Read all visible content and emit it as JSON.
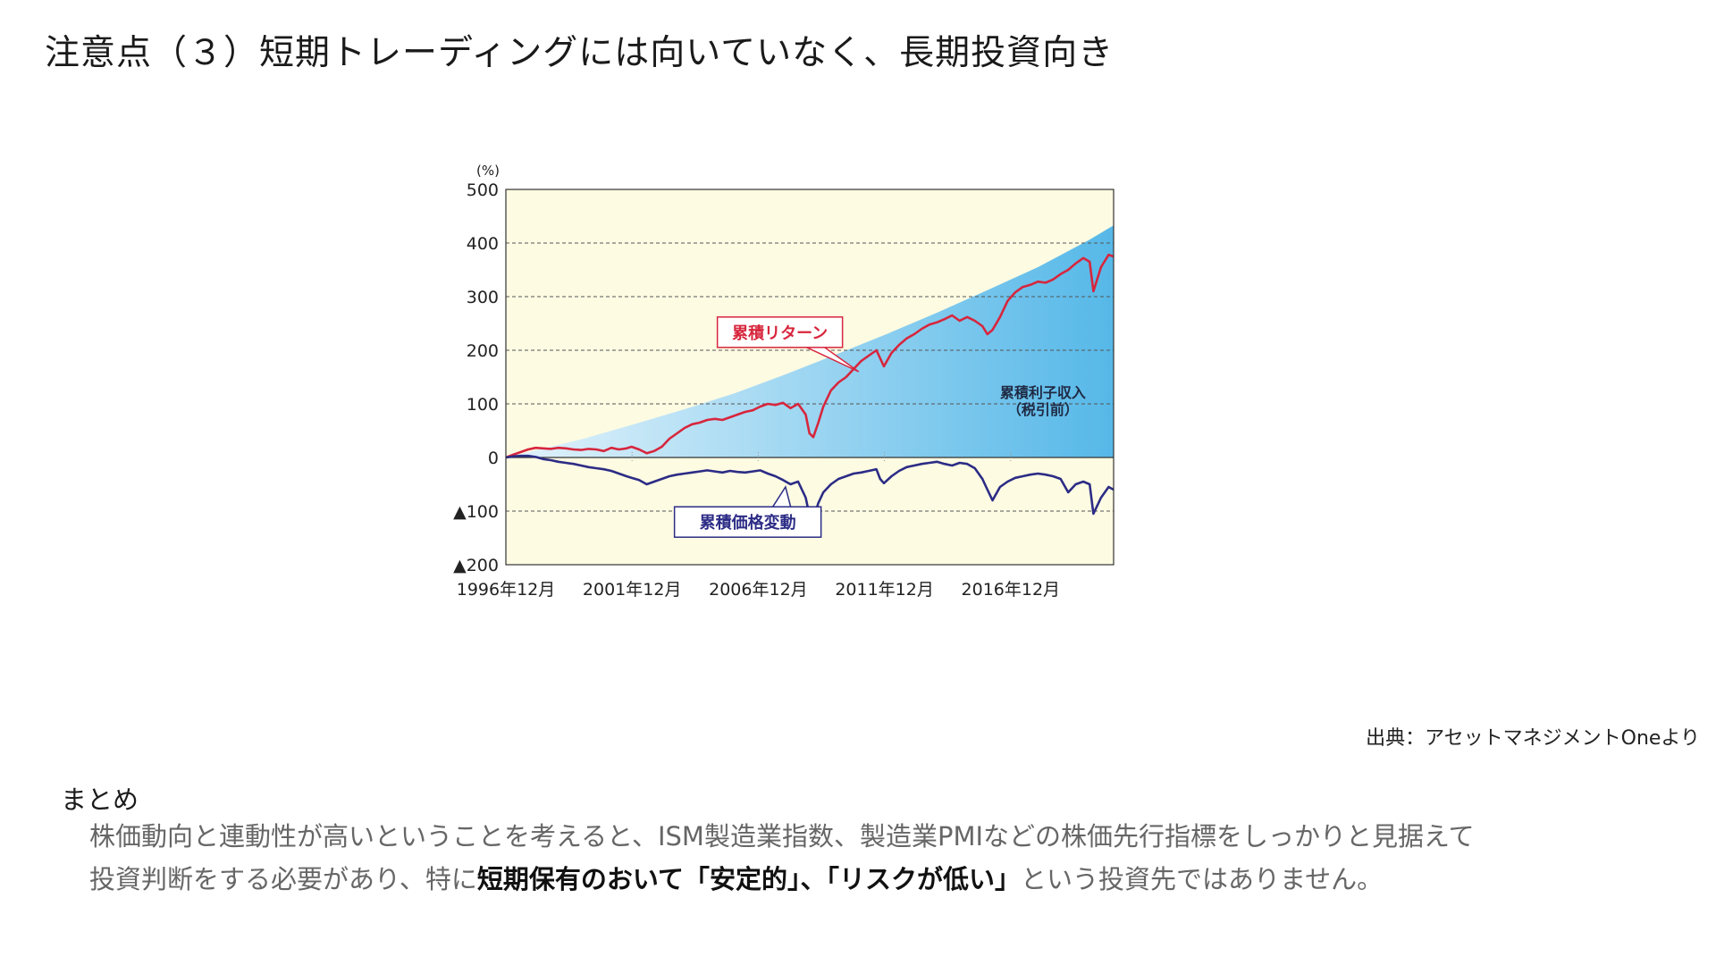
{
  "title": "注意点（３）短期トレーディングには向いていなく、長期投資向き",
  "source": "出典：アセットマネジメントOneより",
  "summary": {
    "heading": "まとめ",
    "line1": "株価動向と連動性が高いということを考えると、ISM製造業指数、製造業PMIなどの株価先行指標をしっかりと見据えて",
    "line2_prefix": "投資判断をする必要があり、特に",
    "line2_em1": "短期保有のおいて「安定的」、「リスクが低い」",
    "line2_suffix": "という投資先ではありません。"
  },
  "colors": {
    "plot_bg": "#fdfbe2",
    "interest_area_light": "#e3f3fb",
    "interest_area_dark": "#56b8e8",
    "cumulative_return": "#d7263d",
    "cumulative_price": "#2c2c86"
  },
  "chart_data": {
    "type": "line",
    "y_unit_label": "(%)",
    "ylim": [
      -200,
      500
    ],
    "y_ticks": [
      500,
      400,
      300,
      200,
      100,
      0,
      -100,
      -200
    ],
    "y_tick_labels": [
      "500",
      "400",
      "300",
      "200",
      "100",
      "0",
      "▲100",
      "▲200"
    ],
    "x_range": [
      1996.92,
      2021.0
    ],
    "x_ticks": [
      1996.92,
      2001.92,
      2006.92,
      2011.92,
      2016.92
    ],
    "x_tick_labels": [
      "1996年12月",
      "2001年12月",
      "2006年12月",
      "2011年12月",
      "2016年12月"
    ],
    "grid": "dashed horizontal at 400, 300, 200, 100 and -100",
    "series": [
      {
        "name": "累積利子収入（税引前）",
        "kind": "area",
        "label_line1": "累積利子収入",
        "label_line2": "（税引前）",
        "x": [
          1996.92,
          1998.0,
          2000.0,
          2002.0,
          2004.0,
          2006.0,
          2008.0,
          2010.0,
          2012.0,
          2014.0,
          2016.0,
          2018.0,
          2020.0,
          2021.0
        ],
        "y": [
          0,
          12,
          35,
          62,
          90,
          120,
          155,
          192,
          230,
          270,
          312,
          355,
          405,
          433
        ]
      },
      {
        "name": "累積リターン",
        "kind": "line",
        "x": [
          1996.92,
          1997.2,
          1997.5,
          1997.8,
          1998.1,
          1998.4,
          1998.7,
          1999.0,
          1999.3,
          1999.6,
          1999.9,
          2000.2,
          2000.5,
          2000.8,
          2001.1,
          2001.4,
          2001.7,
          2001.9,
          2002.2,
          2002.5,
          2002.8,
          2003.1,
          2003.4,
          2003.7,
          2004.0,
          2004.3,
          2004.6,
          2004.9,
          2005.2,
          2005.5,
          2005.8,
          2006.1,
          2006.4,
          2006.7,
          2007.0,
          2007.3,
          2007.6,
          2007.9,
          2008.2,
          2008.5,
          2008.8,
          2008.95,
          2009.1,
          2009.3,
          2009.5,
          2009.8,
          2010.1,
          2010.4,
          2010.7,
          2011.0,
          2011.3,
          2011.6,
          2011.75,
          2011.9,
          2012.2,
          2012.5,
          2012.8,
          2013.1,
          2013.4,
          2013.7,
          2014.0,
          2014.3,
          2014.6,
          2014.9,
          2015.2,
          2015.5,
          2015.8,
          2016.0,
          2016.2,
          2016.5,
          2016.8,
          2017.1,
          2017.4,
          2017.7,
          2018.0,
          2018.3,
          2018.6,
          2018.9,
          2019.2,
          2019.5,
          2019.8,
          2020.05,
          2020.2,
          2020.5,
          2020.8,
          2021.0
        ],
        "y": [
          0,
          5,
          10,
          15,
          18,
          17,
          16,
          18,
          17,
          15,
          14,
          16,
          15,
          12,
          18,
          15,
          17,
          20,
          15,
          8,
          12,
          20,
          35,
          45,
          55,
          62,
          65,
          70,
          72,
          70,
          75,
          80,
          85,
          88,
          95,
          100,
          98,
          102,
          92,
          100,
          80,
          45,
          38,
          65,
          95,
          125,
          140,
          150,
          165,
          180,
          190,
          200,
          185,
          170,
          195,
          210,
          222,
          230,
          240,
          248,
          252,
          258,
          265,
          255,
          262,
          255,
          245,
          230,
          238,
          262,
          292,
          308,
          318,
          322,
          328,
          326,
          332,
          342,
          350,
          362,
          372,
          365,
          310,
          355,
          378,
          375
        ]
      },
      {
        "name": "累積価格変動",
        "kind": "line",
        "x": [
          1996.92,
          1997.2,
          1997.5,
          1997.8,
          1998.1,
          1998.4,
          1998.7,
          1999.0,
          1999.3,
          1999.6,
          1999.9,
          2000.2,
          2000.5,
          2000.8,
          2001.1,
          2001.4,
          2001.7,
          2001.9,
          2002.2,
          2002.5,
          2002.8,
          2003.1,
          2003.4,
          2003.7,
          2004.0,
          2004.3,
          2004.6,
          2004.9,
          2005.2,
          2005.5,
          2005.8,
          2006.1,
          2006.4,
          2006.7,
          2007.0,
          2007.3,
          2007.6,
          2007.9,
          2008.2,
          2008.5,
          2008.8,
          2008.95,
          2009.1,
          2009.3,
          2009.5,
          2009.8,
          2010.1,
          2010.4,
          2010.7,
          2011.0,
          2011.3,
          2011.6,
          2011.75,
          2011.9,
          2012.2,
          2012.5,
          2012.8,
          2013.1,
          2013.4,
          2013.7,
          2014.0,
          2014.3,
          2014.6,
          2014.9,
          2015.2,
          2015.5,
          2015.8,
          2016.0,
          2016.2,
          2016.5,
          2016.8,
          2017.1,
          2017.4,
          2017.7,
          2018.0,
          2018.3,
          2018.6,
          2018.9,
          2019.2,
          2019.5,
          2019.8,
          2020.05,
          2020.2,
          2020.5,
          2020.8,
          2021.0
        ],
        "y": [
          0,
          2,
          3,
          3,
          1,
          -3,
          -5,
          -8,
          -10,
          -12,
          -15,
          -18,
          -20,
          -22,
          -25,
          -30,
          -35,
          -38,
          -42,
          -50,
          -45,
          -40,
          -35,
          -32,
          -30,
          -28,
          -26,
          -24,
          -26,
          -28,
          -25,
          -27,
          -28,
          -26,
          -24,
          -30,
          -35,
          -42,
          -50,
          -45,
          -75,
          -108,
          -115,
          -85,
          -65,
          -50,
          -40,
          -35,
          -30,
          -28,
          -25,
          -22,
          -40,
          -48,
          -35,
          -25,
          -18,
          -15,
          -12,
          -10,
          -8,
          -12,
          -15,
          -10,
          -12,
          -20,
          -40,
          -60,
          -80,
          -55,
          -45,
          -38,
          -35,
          -32,
          -30,
          -32,
          -35,
          -40,
          -65,
          -50,
          -45,
          -50,
          -105,
          -75,
          -55,
          -60
        ]
      }
    ],
    "callouts": [
      {
        "series": "累積リターン",
        "text": "累積リターン"
      },
      {
        "series": "累積価格変動",
        "text": "累積価格変動"
      }
    ]
  }
}
